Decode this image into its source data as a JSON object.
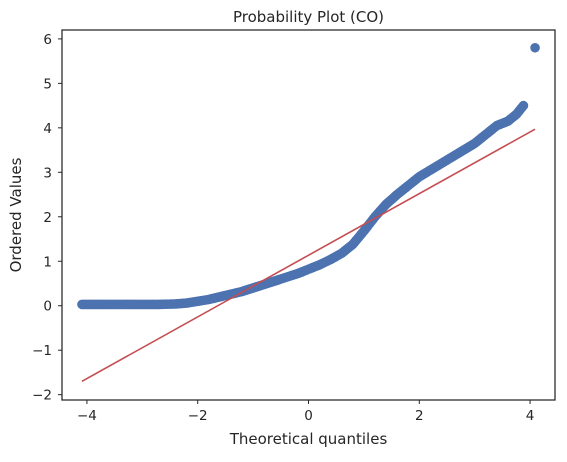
{
  "chart_data": {
    "type": "scatter",
    "title": "Probability Plot (CO)",
    "xlabel": "Theoretical quantiles",
    "ylabel": "Ordered Values",
    "xlim": [
      -4.45,
      4.45
    ],
    "ylim": [
      -2.12,
      6.2
    ],
    "xticks": [
      -4,
      -2,
      0,
      2,
      4
    ],
    "yticks": [
      -2,
      -1,
      0,
      1,
      2,
      3,
      4,
      5,
      6
    ],
    "grid": false,
    "colors": {
      "points": "#4c72b0",
      "fit_line": "#c44e52",
      "axes": "#262626"
    },
    "series": [
      {
        "kind": "scatter",
        "points": [
          [
            -4.09,
            0.03
          ],
          [
            -3.86,
            0.03
          ],
          [
            -3.6,
            0.03
          ],
          [
            -3.3,
            0.03
          ],
          [
            -3.0,
            0.03
          ],
          [
            -2.7,
            0.03
          ],
          [
            -2.4,
            0.04
          ],
          [
            -2.2,
            0.06
          ],
          [
            -2.0,
            0.1
          ],
          [
            -1.8,
            0.14
          ],
          [
            -1.6,
            0.2
          ],
          [
            -1.4,
            0.26
          ],
          [
            -1.2,
            0.32
          ],
          [
            -1.0,
            0.4
          ],
          [
            -0.8,
            0.48
          ],
          [
            -0.6,
            0.56
          ],
          [
            -0.4,
            0.64
          ],
          [
            -0.2,
            0.72
          ],
          [
            0.0,
            0.82
          ],
          [
            0.2,
            0.92
          ],
          [
            0.4,
            1.04
          ],
          [
            0.6,
            1.18
          ],
          [
            0.8,
            1.38
          ],
          [
            1.0,
            1.68
          ],
          [
            1.2,
            2.0
          ],
          [
            1.4,
            2.28
          ],
          [
            1.6,
            2.5
          ],
          [
            1.8,
            2.7
          ],
          [
            2.0,
            2.9
          ],
          [
            2.2,
            3.05
          ],
          [
            2.4,
            3.2
          ],
          [
            2.6,
            3.35
          ],
          [
            2.8,
            3.5
          ],
          [
            3.0,
            3.65
          ],
          [
            3.2,
            3.85
          ],
          [
            3.4,
            4.05
          ],
          [
            3.6,
            4.15
          ],
          [
            3.75,
            4.3
          ],
          [
            3.88,
            4.5
          ],
          [
            4.09,
            5.8
          ]
        ]
      },
      {
        "kind": "line",
        "points": [
          [
            -4.09,
            -1.7
          ],
          [
            4.09,
            3.97
          ]
        ]
      }
    ]
  }
}
